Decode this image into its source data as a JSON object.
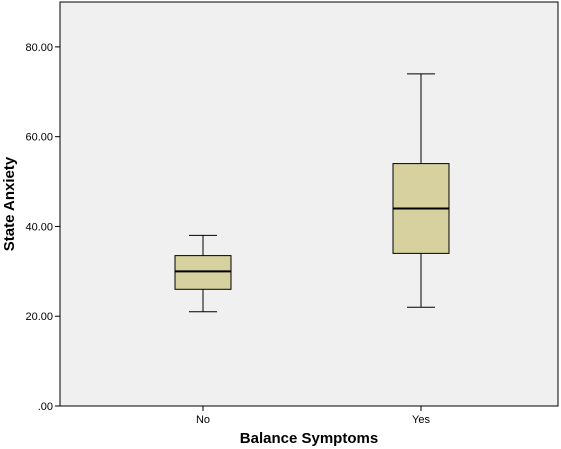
{
  "chart_data": {
    "type": "boxplot",
    "xlabel": "Balance Symptoms",
    "ylabel": "State Anxiety",
    "ylim": [
      0,
      90
    ],
    "y_ticks": [
      {
        "value": 0,
        "label": ".00"
      },
      {
        "value": 20,
        "label": "20.00"
      },
      {
        "value": 40,
        "label": "40.00"
      },
      {
        "value": 60,
        "label": "60.00"
      },
      {
        "value": 80,
        "label": "80.00"
      }
    ],
    "categories": [
      "No",
      "Yes"
    ],
    "boxes": [
      {
        "category": "No",
        "min": 21,
        "q1": 26,
        "median": 30,
        "q3": 33.5,
        "max": 38
      },
      {
        "category": "Yes",
        "min": 22,
        "q1": 34,
        "median": 44,
        "q3": 54,
        "max": 74
      }
    ],
    "grid": false,
    "colors": {
      "box_fill": "#d7d1a0",
      "plot_background": "#f0f0f0",
      "stroke": "#000000"
    }
  }
}
